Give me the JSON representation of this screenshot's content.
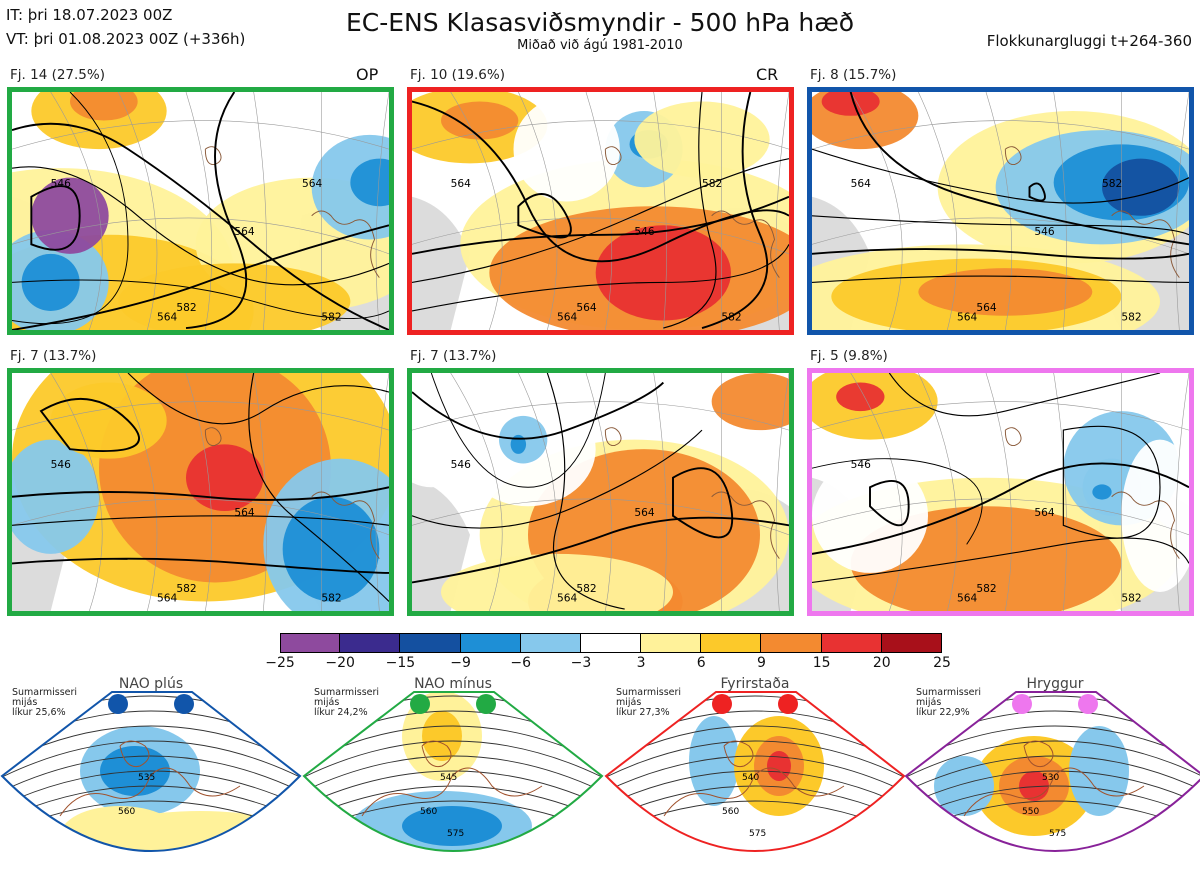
{
  "header": {
    "init_time": "IT: þri 18.07.2023 00Z",
    "valid_time": "VT: þri 01.08.2023 00Z  (+336h)",
    "title": "EC-ENS Klasasviðsmyndir - 500 hPa hæð",
    "subtitle": "Miðað við ágú 1981-2010",
    "window": "Flokkunargluggi t+264-360"
  },
  "panels": [
    {
      "label": "Fj. 14 (27.5%)",
      "tag": "OP",
      "border": "#22aa44",
      "contours": [
        "546",
        "564",
        "564",
        "582",
        "582",
        "564"
      ]
    },
    {
      "label": "Fj. 10 (19.6%)",
      "tag": "CR",
      "border": "#ee2222",
      "contours": [
        "564",
        "546",
        "564",
        "564",
        "582",
        "582"
      ]
    },
    {
      "label": "Fj. 8 (15.7%)",
      "tag": "",
      "border": "#1155aa",
      "contours": [
        "564",
        "546",
        "564",
        "564",
        "582",
        "582"
      ]
    },
    {
      "label": "Fj. 7 (13.7%)",
      "tag": "",
      "border": "#22aa44",
      "contours": [
        "546",
        "564",
        "564",
        "582",
        "582"
      ]
    },
    {
      "label": "Fj. 7 (13.7%)",
      "tag": "",
      "border": "#22aa44",
      "contours": [
        "546",
        "564",
        "564",
        "582"
      ]
    },
    {
      "label": "Fj. 5 (9.8%)",
      "tag": "",
      "border": "#ee77ee",
      "contours": [
        "546",
        "564",
        "564",
        "582",
        "582"
      ]
    }
  ],
  "colorbar": {
    "ticks": [
      "−25",
      "−20",
      "−15",
      "−9",
      "−6",
      "−3",
      "3",
      "6",
      "9",
      "15",
      "20",
      "25"
    ],
    "colors": [
      "#8e4a9e",
      "#3b2b8e",
      "#1450a0",
      "#1e8fd6",
      "#86c8ec",
      "#ffffff",
      "#fff29a",
      "#fcc92a",
      "#f38a30",
      "#e83232",
      "#a8101a"
    ]
  },
  "regimes": [
    {
      "name": "NAO plús",
      "note": [
        "Sumarmisseri",
        "mijás",
        "líkur 25,6%"
      ],
      "color": "#1155aa",
      "dots": [
        "#1155aa",
        "#1155aa"
      ],
      "contours": [
        "535",
        "560"
      ]
    },
    {
      "name": "NAO mínus",
      "note": [
        "Sumarmisseri",
        "mijás",
        "líkur 24,2%"
      ],
      "color": "#22aa44",
      "dots": [
        "#22aa44",
        "#22aa44"
      ],
      "contours": [
        "545",
        "560",
        "575"
      ]
    },
    {
      "name": "Fyrirstaða",
      "note": [
        "Sumarmisseri",
        "mijás",
        "líkur 27,3%"
      ],
      "color": "#ee2222",
      "dots": [
        "#ee2222",
        "#ee2222"
      ],
      "contours": [
        "540",
        "560",
        "575"
      ]
    },
    {
      "name": "Hryggur",
      "note": [
        "Sumarmisseri",
        "mijás",
        "líkur 22,9%"
      ],
      "color": "#882299",
      "dots": [
        "#ee77ee",
        "#ee77ee"
      ],
      "contours": [
        "530",
        "550",
        "575"
      ]
    }
  ]
}
